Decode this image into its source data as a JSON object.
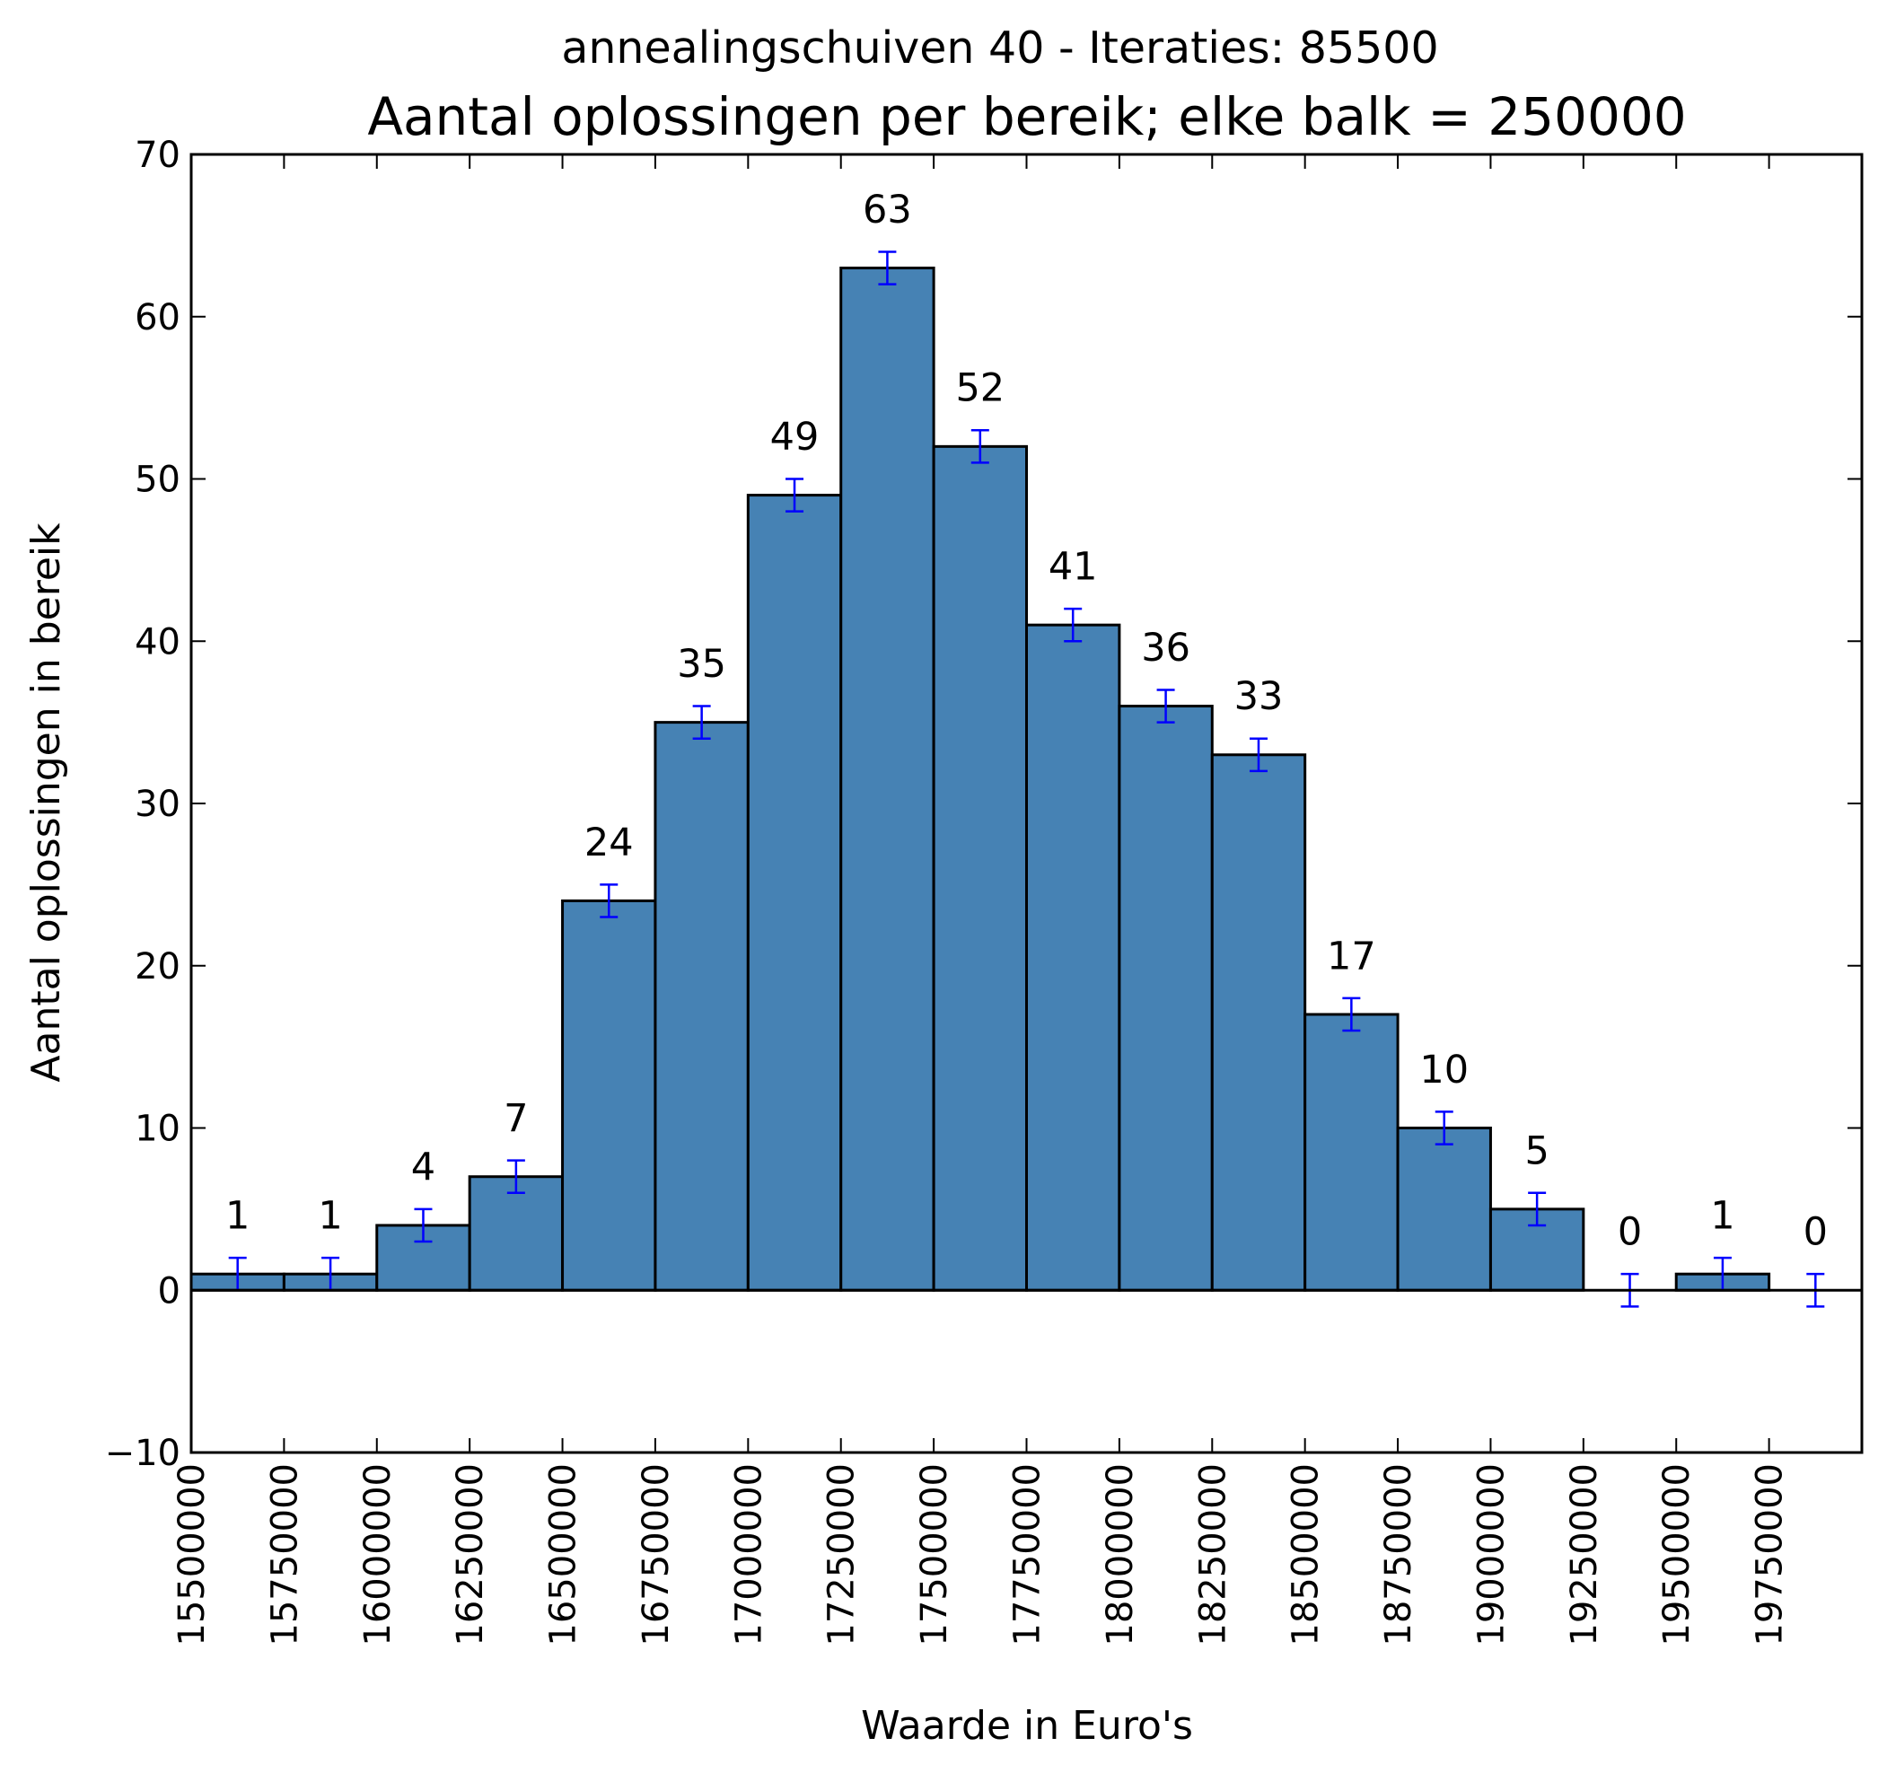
{
  "chart_data": {
    "type": "bar",
    "suptitle": "annealingschuiven 40 - Iteraties: 85500",
    "title": "Aantal oplossingen per bereik; elke balk = 250000",
    "xlabel": "Waarde in Euro's",
    "ylabel": "Aantal oplossingen in bereik",
    "bin_width": 250000,
    "xlim": [
      15500000,
      20000000
    ],
    "ylim": [
      -10,
      70
    ],
    "xticks": [
      "15500000",
      "15750000",
      "16000000",
      "16250000",
      "16500000",
      "16750000",
      "17000000",
      "17250000",
      "17500000",
      "17750000",
      "18000000",
      "18250000",
      "18500000",
      "18750000",
      "19000000",
      "19250000",
      "19500000",
      "19750000"
    ],
    "yticks": [
      "−10",
      "0",
      "10",
      "20",
      "30",
      "40",
      "50",
      "60",
      "70"
    ],
    "bin_starts": [
      15500000,
      15750000,
      16000000,
      16250000,
      16500000,
      16750000,
      17000000,
      17250000,
      17500000,
      17750000,
      18000000,
      18250000,
      18500000,
      18750000,
      19000000,
      19250000,
      19500000,
      19750000
    ],
    "values": [
      1,
      1,
      4,
      7,
      24,
      35,
      49,
      63,
      52,
      41,
      36,
      33,
      17,
      10,
      5,
      0,
      1,
      0
    ],
    "error": 1,
    "bar_color": "#4682b4",
    "errorbar_color": "#0000ff",
    "grid": false
  }
}
